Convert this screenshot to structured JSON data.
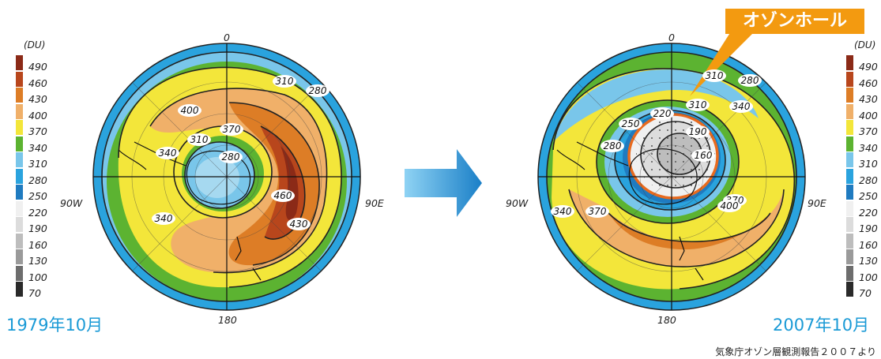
{
  "left_map": {
    "date_label": "1979年10月",
    "axis": {
      "top": "0",
      "bottom": "180",
      "left": "90W",
      "right": "90E"
    },
    "contour_labels": [
      "310",
      "280",
      "400",
      "370",
      "340",
      "310",
      "280",
      "340",
      "460",
      "430"
    ]
  },
  "right_map": {
    "date_label": "2007年10月",
    "axis": {
      "top": "0",
      "bottom": "180",
      "left": "90W",
      "right": "90E"
    },
    "contour_labels": [
      "310",
      "280",
      "340",
      "310",
      "220",
      "250",
      "190",
      "280",
      "160",
      "370",
      "340",
      "370",
      "400"
    ],
    "callout": "オゾンホール"
  },
  "legend": {
    "unit": "(DU)",
    "items": [
      {
        "value": "490",
        "color": "#8b2a17"
      },
      {
        "value": "460",
        "color": "#b8461c"
      },
      {
        "value": "430",
        "color": "#dd7d26"
      },
      {
        "value": "400",
        "color": "#f0b069"
      },
      {
        "value": "370",
        "color": "#f3e63a"
      },
      {
        "value": "340",
        "color": "#5cb331"
      },
      {
        "value": "310",
        "color": "#79c6ea"
      },
      {
        "value": "280",
        "color": "#2aa3de"
      },
      {
        "value": "250",
        "color": "#1f7bc0"
      },
      {
        "value": "220",
        "color": "#f0f0f0"
      },
      {
        "value": "190",
        "color": "#dcdcdc"
      },
      {
        "value": "160",
        "color": "#bdbdbd"
      },
      {
        "value": "130",
        "color": "#9a9a9a"
      },
      {
        "value": "100",
        "color": "#6d6d6d"
      },
      {
        "value": "70",
        "color": "#2a2a2a"
      }
    ]
  },
  "source": "気象庁オゾン層観測報告２００７より"
}
